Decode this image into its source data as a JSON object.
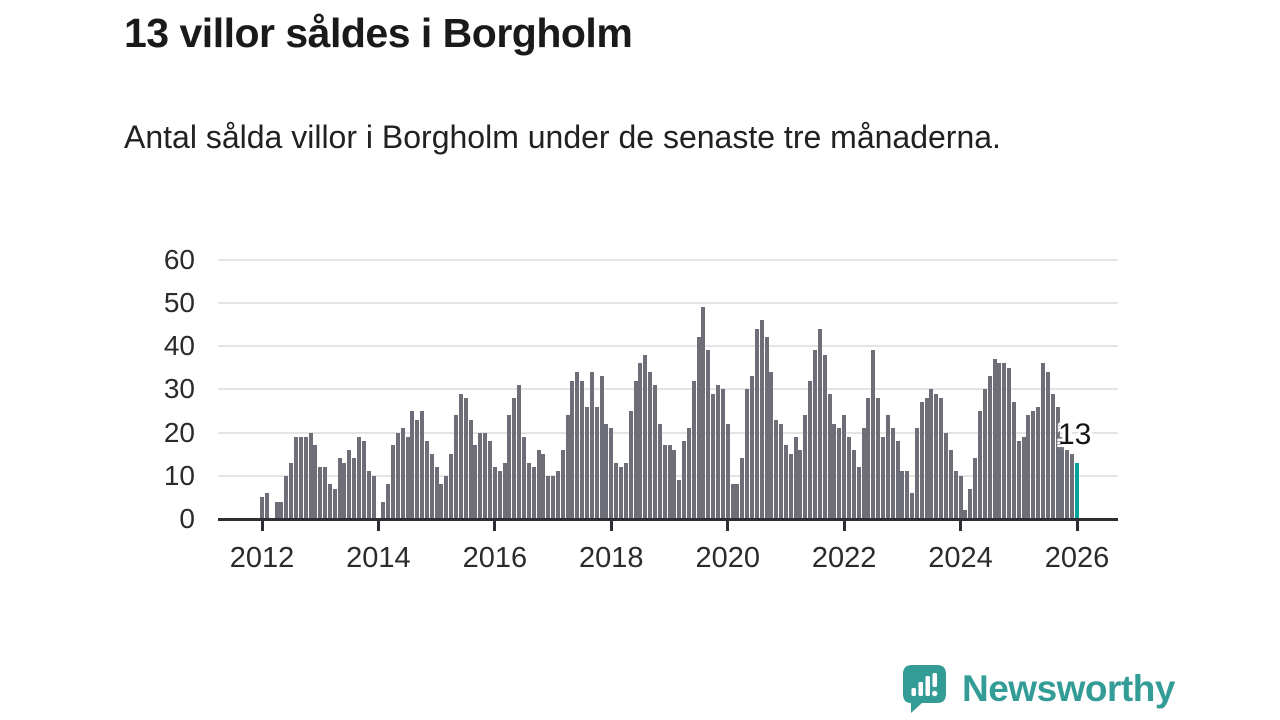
{
  "header": {
    "title": "13 villor såldes i Borgholm",
    "subtitle": "Antal sålda villor i Borgholm under de senaste tre månaderna."
  },
  "chart_data": {
    "type": "bar",
    "title": "13 villor såldes i Borgholm",
    "subtitle": "Antal sålda villor i Borgholm under de senaste tre månaderna.",
    "x_start": "2012-01",
    "x_end": "2026-01",
    "x_frequency": "monthly",
    "xticks": [
      2012,
      2014,
      2016,
      2018,
      2020,
      2022,
      2024,
      2026
    ],
    "yticks": [
      0,
      10,
      20,
      30,
      40,
      50,
      60
    ],
    "ylim": [
      0,
      60
    ],
    "grid": "horizontal",
    "legend": "none",
    "annotation": {
      "text": "13",
      "applies_to": "last-bar"
    },
    "colors": {
      "bar": "#6d6e77",
      "highlight": "#03a59b",
      "grid": "#e4e4e4",
      "axis": "#2d2d33",
      "brand": "#339c96"
    },
    "values": [
      5,
      6,
      0,
      4,
      4,
      10,
      13,
      19,
      19,
      19,
      20,
      17,
      12,
      12,
      8,
      7,
      14,
      13,
      16,
      14,
      19,
      18,
      11,
      10,
      0,
      4,
      8,
      17,
      20,
      21,
      19,
      25,
      23,
      25,
      18,
      15,
      12,
      8,
      10,
      15,
      24,
      29,
      28,
      23,
      17,
      20,
      20,
      18,
      12,
      11,
      13,
      24,
      28,
      31,
      19,
      13,
      12,
      16,
      15,
      10,
      10,
      11,
      16,
      24,
      32,
      34,
      32,
      26,
      34,
      26,
      33,
      22,
      21,
      13,
      12,
      13,
      25,
      32,
      36,
      38,
      34,
      31,
      22,
      17,
      17,
      16,
      9,
      18,
      21,
      32,
      42,
      49,
      39,
      29,
      31,
      30,
      22,
      8,
      8,
      14,
      30,
      33,
      44,
      46,
      42,
      34,
      23,
      22,
      17,
      15,
      19,
      16,
      24,
      32,
      39,
      44,
      38,
      29,
      22,
      21,
      24,
      19,
      16,
      12,
      21,
      28,
      39,
      28,
      19,
      24,
      21,
      18,
      11,
      11,
      6,
      21,
      27,
      28,
      30,
      29,
      28,
      20,
      16,
      11,
      10,
      2,
      7,
      14,
      25,
      30,
      33,
      37,
      36,
      36,
      35,
      27,
      18,
      19,
      24,
      25,
      26,
      36,
      34,
      29,
      26,
      19,
      16,
      15,
      13
    ]
  },
  "footer": {
    "brand": "Newsworthy"
  }
}
